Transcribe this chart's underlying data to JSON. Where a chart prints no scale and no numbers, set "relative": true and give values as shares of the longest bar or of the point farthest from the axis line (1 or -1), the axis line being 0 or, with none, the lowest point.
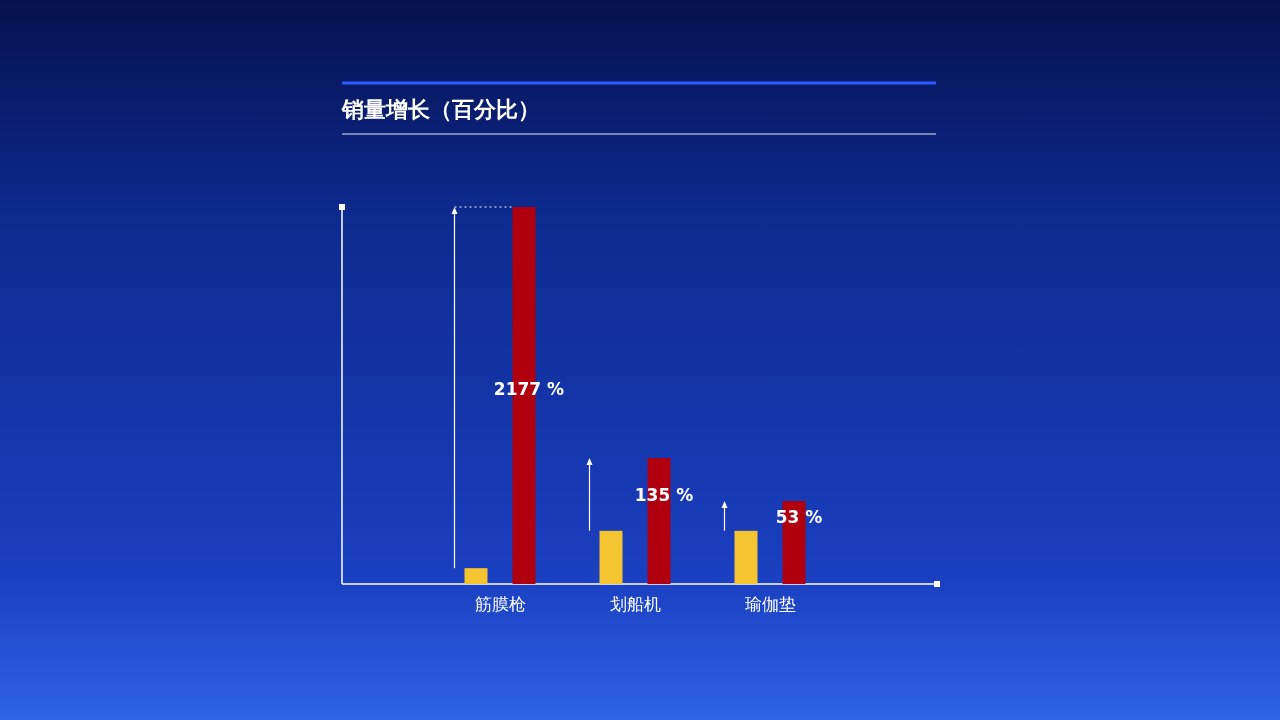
{
  "chart_data": {
    "type": "bar",
    "title": "销量增长（百分比）",
    "categories": [
      "筋膜枪",
      "划船机",
      "瑜伽垫"
    ],
    "relative": true,
    "series": [
      {
        "color": "#f5c531",
        "values": [
          0.042,
          0.141,
          0.141
        ]
      },
      {
        "color": "#b0000f",
        "values": [
          1,
          0.334,
          0.22
        ]
      }
    ],
    "annotations": [
      "2177 %",
      "135 %",
      "53 %"
    ]
  }
}
